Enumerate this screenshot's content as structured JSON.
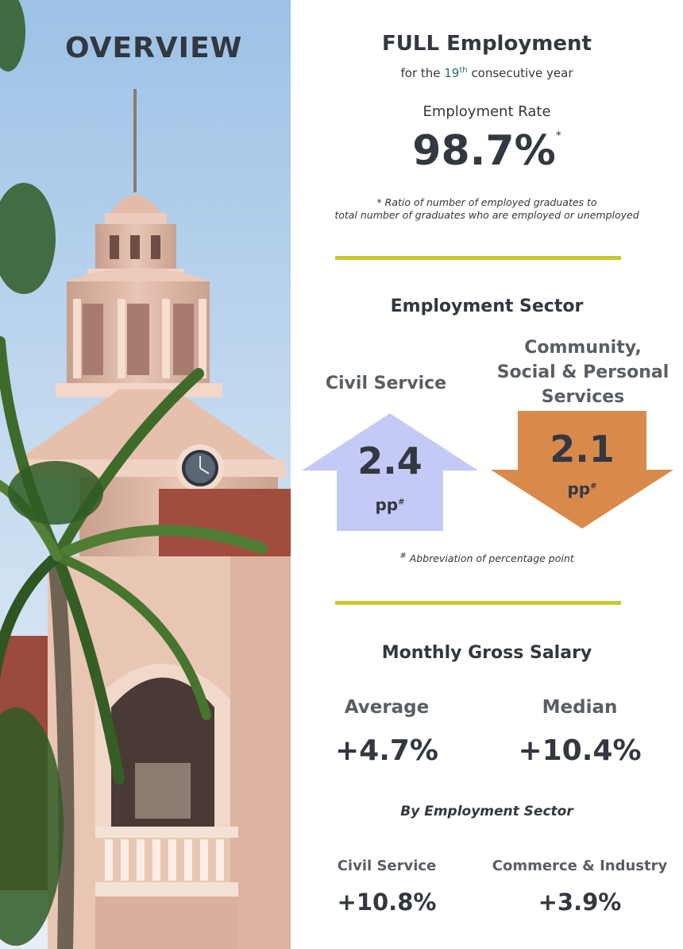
{
  "overview": {
    "title": "OVERVIEW"
  },
  "employment": {
    "headline": "FULL Employment",
    "sub_prefix": "for the ",
    "sub_num": "19",
    "sub_sup": "th",
    "sub_suffix": " consecutive year",
    "rate_label": "Employment Rate",
    "rate_value": "98.7%",
    "rate_mark": "*",
    "footnote_mark": "*",
    "footnote_line1": " Ratio of number of employed graduates to",
    "footnote_line2": "total number of graduates who are employed or unemployed"
  },
  "sector": {
    "title": "Employment Sector",
    "civil": {
      "label": "Civil Service",
      "value": "2.4",
      "unit": "pp",
      "mark": "#",
      "direction": "up",
      "color": "#c5c9f5"
    },
    "community": {
      "label_line1": "Community,",
      "label_line2": "Social & Personal",
      "label_line3": "Services",
      "value": "2.1",
      "unit": "pp",
      "mark": "#",
      "direction": "down",
      "color": "#d98a4a"
    },
    "footnote_mark": "#",
    "footnote": " Abbreviation of percentage point"
  },
  "salary": {
    "title": "Monthly Gross Salary",
    "average_label": "Average",
    "average_value": "+4.7%",
    "median_label": "Median",
    "median_value": "+10.4%",
    "by_sector_title": "By Employment Sector",
    "civil_label": "Civil Service",
    "civil_value": "+10.8%",
    "commerce_label": "Commerce & Industry",
    "commerce_value": "+3.9%"
  },
  "colors": {
    "divider": "#c9c830",
    "text": "#33373f",
    "teal": "#2a6d6a"
  }
}
